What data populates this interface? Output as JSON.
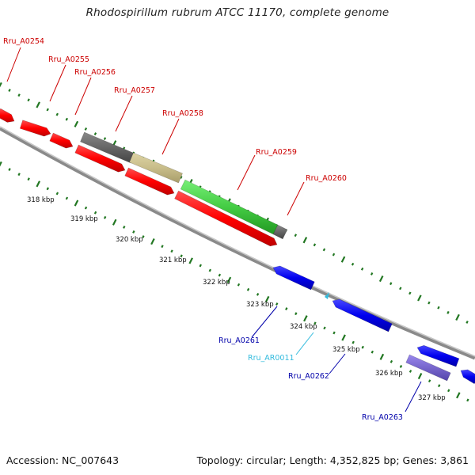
{
  "title": "Rhodospirillum rubrum ATCC 11170, complete genome",
  "footer": {
    "accession": "Accession: NC_007643",
    "stats": "Topology: circular; Length: 4,352,825 bp; Genes: 3,861"
  },
  "colors": {
    "forward_label": "#cc0000",
    "reverse_label": "#0000aa",
    "rna_label": "#33bbdd",
    "cds_forward": "#ff0000",
    "cds_reverse": "#0000ee",
    "gene_other": "#666666",
    "gene_tan": "#c8bd8a",
    "gene_green": "#44cc44",
    "gene_purple": "#7766cc",
    "backbone": "#888888",
    "ticks": "#227722"
  },
  "gene_labels": [
    {
      "text": "Rru_A0254",
      "strand": "forward"
    },
    {
      "text": "Rru_A0255",
      "strand": "forward"
    },
    {
      "text": "Rru_A0256",
      "strand": "forward"
    },
    {
      "text": "Rru_A0257",
      "strand": "forward"
    },
    {
      "text": "Rru_A0258",
      "strand": "forward"
    },
    {
      "text": "Rru_A0259",
      "strand": "forward"
    },
    {
      "text": "Rru_A0260",
      "strand": "forward"
    },
    {
      "text": "Rru_A0261",
      "strand": "reverse"
    },
    {
      "text": "Rru_AR0011",
      "strand": "rna"
    },
    {
      "text": "Rru_A0262",
      "strand": "reverse"
    },
    {
      "text": "Rru_A0263",
      "strand": "reverse"
    }
  ],
  "kbp_ticks": [
    "318 kbp",
    "319 kbp",
    "320 kbp",
    "321 kbp",
    "322 kbp",
    "323 kbp",
    "324 kbp",
    "325 kbp",
    "326 kbp",
    "327 kbp"
  ]
}
